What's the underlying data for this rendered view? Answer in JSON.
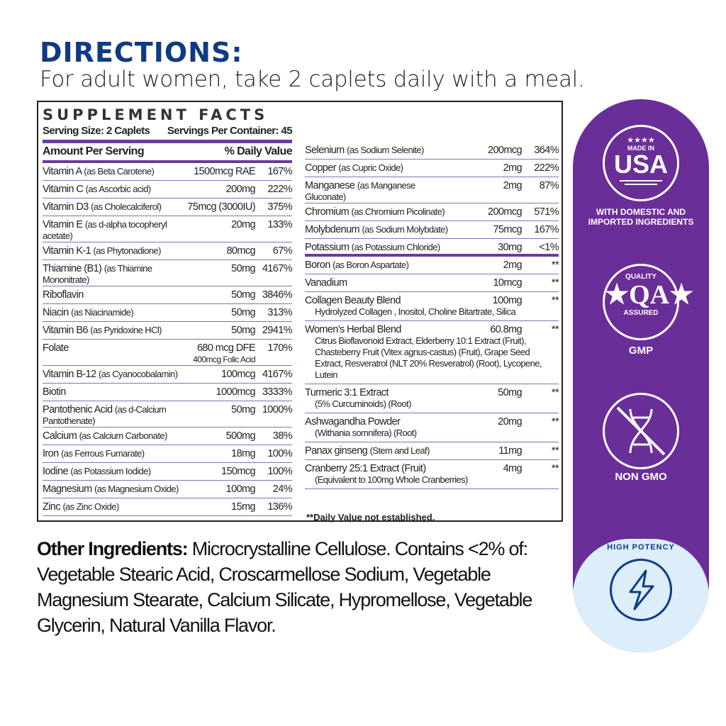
{
  "directions": {
    "title": "DIRECTIONS:",
    "text": "For adult women, take 2 caplets daily with a meal."
  },
  "facts": {
    "heading": "SUPPLEMENT FACTS",
    "serving_size": "Serving Size: 2 Caplets",
    "servings_per_container": "Servings Per Container: 45",
    "amount_header": "Amount Per Serving",
    "dv_header": "% Daily Value",
    "left_rows": [
      {
        "name": "Vitamin A",
        "form": "(as Beta Carotene)",
        "amount": "1500mcg RAE",
        "dv": "167%"
      },
      {
        "name": "Vitamin C",
        "form": "(as Ascorbic acid)",
        "amount": "200mg",
        "dv": "222%"
      },
      {
        "name": "Vitamin D3",
        "form": "(as Cholecalciferol)",
        "amount": "75mcg (3000IU)",
        "dv": "375%"
      },
      {
        "name": "Vitamin E",
        "form": "(as d-alpha tocopheryl acetate)",
        "amount": "20mg",
        "dv": "133%"
      },
      {
        "name": "Vitamin K-1",
        "form": "(as Phytonadione)",
        "amount": "80mcg",
        "dv": "67%"
      },
      {
        "name": "Thiamine (B1)",
        "form": "(as Thiamine Mononitrate)",
        "amount": "50mg",
        "dv": "4167%"
      },
      {
        "name": "Riboflavin",
        "form": "",
        "amount": "50mg",
        "dv": "3846%"
      },
      {
        "name": "Niacin",
        "form": "(as Niacinamide)",
        "amount": "50mg",
        "dv": "313%"
      },
      {
        "name": "Vitamin B6",
        "form": "(as Pyridoxine HCl)",
        "amount": "50mg",
        "dv": "2941%"
      },
      {
        "name": "Folate",
        "form": "",
        "amount": "680 mcg DFE",
        "amount2": "400mcg Folic Acid",
        "dv": "170%"
      },
      {
        "name": "Vitamin B-12",
        "form": "(as Cyanocobalamin)",
        "amount": "100mcg",
        "dv": "4167%"
      },
      {
        "name": "Biotin",
        "form": "",
        "amount": "1000mcg",
        "dv": "3333%"
      },
      {
        "name": "Pantothenic Acid",
        "form": "(as d-Calcium Pantothenate)",
        "amount": "50mg",
        "dv": "1000%"
      },
      {
        "name": "Calcium",
        "form": "(as Calcium Carbonate)",
        "amount": "500mg",
        "dv": "38%"
      },
      {
        "name": "Iron",
        "form": "(as Ferrous Fumarate)",
        "amount": "18mg",
        "dv": "100%"
      },
      {
        "name": "Iodine",
        "form": "(as Potassium Iodide)",
        "amount": "150mcg",
        "dv": "100%"
      },
      {
        "name": "Magnesium",
        "form": "(as Magnesium Oxide)",
        "amount": "100mg",
        "dv": "24%"
      },
      {
        "name": "Zinc",
        "form": "(as Zinc Oxide)",
        "amount": "15mg",
        "dv": "136%"
      }
    ],
    "right_rows": [
      {
        "name": "Selenium",
        "form": "(as Sodium Selenite)",
        "amount": "200mcg",
        "dv": "364%"
      },
      {
        "name": "Copper",
        "form": "(as Cupric Oxide)",
        "amount": "2mg",
        "dv": "222%"
      },
      {
        "name": "Manganese",
        "form": "(as Manganese Gluconate)",
        "amount": "2mg",
        "dv": "87%"
      },
      {
        "name": "Chromium",
        "form": "(as Chromium Picolinate)",
        "amount": "200mcg",
        "dv": "571%"
      },
      {
        "name": "Molybdenum",
        "form": "(as Sodium Molybdate)",
        "amount": "75mcg",
        "dv": "167%"
      },
      {
        "name": "Potassium",
        "form": "(as Potassium Chloride)",
        "amount": "30mg",
        "dv": "<1%"
      },
      {
        "name": "Boron",
        "form": "(as Boron Aspartate)",
        "amount": "2mg",
        "dv": "**"
      },
      {
        "name": "Vanadium",
        "form": "",
        "amount": "10mcg",
        "dv": "**"
      },
      {
        "name": "Collagen Beauty Blend",
        "form": "",
        "amount": "100mg",
        "dv": "**",
        "sub": "Hydrolyzed Collagen , Inositol, Choline Bitartrate, Silica"
      },
      {
        "name": "Women’s Herbal Blend",
        "form": "",
        "amount": "60.8mg",
        "dv": "**",
        "sub": "Citrus Bioflavonoid Extract, Elderberry 10:1 Extract (Fruit), Chasteberry Fruit (Vitex agnus-castus) (Fruit), Grape Seed Extract, Resveratrol (NLT 20% Resveratrol) (Root), Lycopene, Lutein"
      },
      {
        "name": "Turmeric 3:1 Extract",
        "form": "",
        "amount": "50mg",
        "dv": "**",
        "sub": "(5% Curcuminoids) (Root)"
      },
      {
        "name": "Ashwagandha Powder",
        "form": "",
        "amount": "20mg",
        "dv": "**",
        "sub": "(Withania somnifera) (Root)"
      },
      {
        "name": "Panax ginseng",
        "form": "(Stem and Leaf)",
        "amount": "11mg",
        "dv": "**"
      },
      {
        "name": "Cranberry 25:1 Extract (Fruit)",
        "form": "",
        "amount": "4mg",
        "dv": "**",
        "sub": "(Equivalent to 100mg Whole Cranberries)"
      }
    ],
    "footnote": "**Daily Value not established."
  },
  "other": {
    "label": "Other Ingredients:",
    "text": " Microcrystalline Cellulose. Contains <2% of: Vegetable Stearic Acid, Croscarmellose Sodium, Vegetable Magnesium Stearate, Calcium Silicate, Hypromellose, Vegetable Glycerin, Natural Vanilla Flavor."
  },
  "badges": {
    "usa_top": "MADE IN",
    "usa": "USA",
    "usa_caption": "WITH DOMESTIC AND IMPORTED INGREDIENTS",
    "qa_top": "QUALITY",
    "qa": "QA",
    "qa_bottom": "ASSURED",
    "gmp": "GMP",
    "nongmo": "NON GMO",
    "potency": "HIGH POTENCY"
  },
  "colors": {
    "brand_blue": "#0f3a85",
    "purple": "#6a2e98",
    "light_blue": "#dbeefa"
  }
}
